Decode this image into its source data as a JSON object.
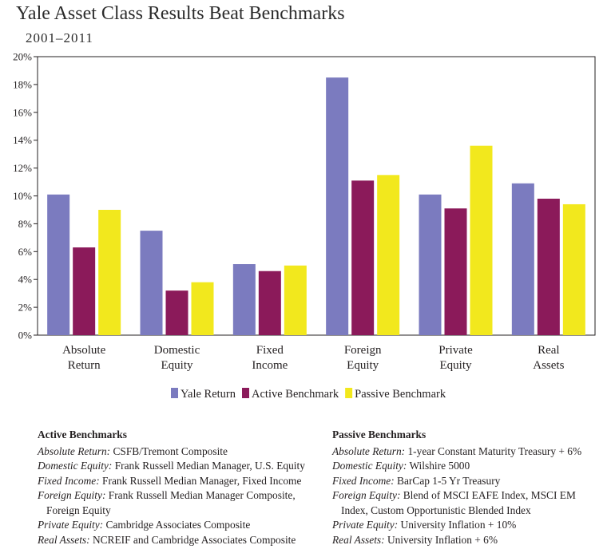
{
  "chart_data": {
    "type": "bar",
    "title": "Yale Asset Class Results Beat Benchmarks",
    "subtitle": "2001–2011",
    "categories": [
      [
        "Absolute",
        "Return"
      ],
      [
        "Domestic",
        "Equity"
      ],
      [
        "Fixed",
        "Income"
      ],
      [
        "Foreign",
        "Equity"
      ],
      [
        "Private",
        "Equity"
      ],
      [
        "Real",
        "Assets"
      ]
    ],
    "series": [
      {
        "name": "Yale Return",
        "color": "#7b7bbf",
        "values": [
          10.1,
          7.5,
          5.1,
          18.5,
          10.1,
          10.9
        ]
      },
      {
        "name": "Active Benchmark",
        "color": "#8b1a5a",
        "values": [
          6.3,
          3.2,
          4.6,
          11.1,
          9.1,
          9.8
        ]
      },
      {
        "name": "Passive Benchmark",
        "color": "#f2e81d",
        "values": [
          9.0,
          3.8,
          5.0,
          11.5,
          13.6,
          9.4
        ]
      }
    ],
    "ylim": [
      0,
      20
    ],
    "ytick_step": 2,
    "ytick_suffix": "%",
    "grid": false,
    "legend_position": "bottom-center",
    "xlabel": "",
    "ylabel": ""
  },
  "notes": {
    "active": {
      "heading": "Active Benchmarks",
      "lines": [
        {
          "label": "Absolute Return:",
          "text": " CSFB/Tremont Composite",
          "cont": false
        },
        {
          "label": "Domestic Equity:",
          "text": " Frank Russell Median Manager, U.S. Equity",
          "cont": false
        },
        {
          "label": "Fixed Income:",
          "text": " Frank Russell Median Manager, Fixed Income",
          "cont": false
        },
        {
          "label": "Foreign Equity:",
          "text": " Frank Russell Median Manager Composite,",
          "cont": false
        },
        {
          "label": "",
          "text": "Foreign Equity",
          "cont": true
        },
        {
          "label": "Private Equity:",
          "text": " Cambridge Associates Composite",
          "cont": false
        },
        {
          "label": "Real Assets:",
          "text": " NCREIF and Cambridge Associates Composite",
          "cont": false
        }
      ]
    },
    "passive": {
      "heading": "Passive Benchmarks",
      "lines": [
        {
          "label": "Absolute Return:",
          "text": " 1-year Constant Maturity Treasury + 6%",
          "cont": false
        },
        {
          "label": "Domestic Equity:",
          "text": " Wilshire 5000",
          "cont": false
        },
        {
          "label": "Fixed Income:",
          "text": " BarCap 1-5 Yr Treasury",
          "cont": false
        },
        {
          "label": "Foreign Equity:",
          "text": " Blend of MSCI EAFE Index, MSCI EM",
          "cont": false
        },
        {
          "label": "",
          "text": "Index, Custom Opportunistic Blended Index",
          "cont": true
        },
        {
          "label": "Private Equity:",
          "text": " University Inflation + 10%",
          "cont": false
        },
        {
          "label": "Real Assets:",
          "text": " University Inflation + 6%",
          "cont": false
        }
      ]
    }
  }
}
